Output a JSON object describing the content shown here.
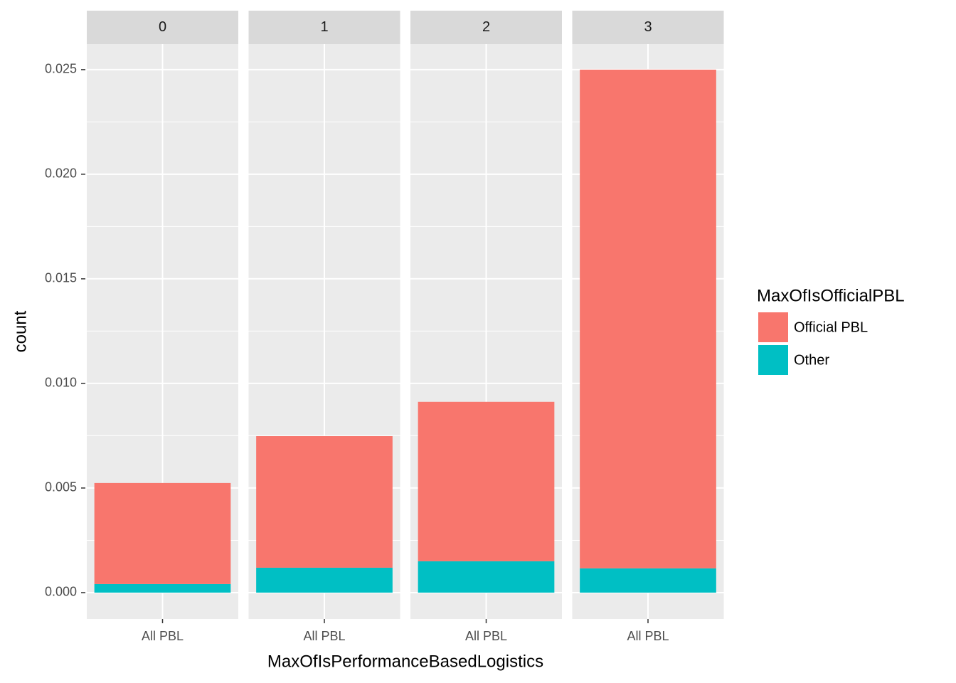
{
  "chart_data": {
    "type": "bar",
    "stacked": true,
    "facets": [
      "0",
      "1",
      "2",
      "3"
    ],
    "categories": [
      "All PBL",
      "All PBL",
      "All PBL",
      "All PBL"
    ],
    "series": [
      {
        "name": "Official PBL",
        "color": "#f8766d",
        "values": [
          0.00483,
          0.00629,
          0.00762,
          0.02384
        ]
      },
      {
        "name": "Other",
        "color": "#00bfc4",
        "values": [
          0.00041,
          0.00119,
          0.0015,
          0.00116
        ]
      }
    ],
    "xlabel": "MaxOfIsPerformanceBasedLogistics",
    "ylabel": "count",
    "legend_title": "MaxOfIsOfficialPBL",
    "ylim": [
      -0.00126,
      0.02622
    ],
    "yticks": [
      {
        "value": 0,
        "label": "0.000"
      },
      {
        "value": 0.005,
        "label": "0.005"
      },
      {
        "value": 0.01,
        "label": "0.010"
      },
      {
        "value": 0.015,
        "label": "0.015"
      },
      {
        "value": 0.02,
        "label": "0.020"
      },
      {
        "value": 0.025,
        "label": "0.025"
      }
    ],
    "grid": true,
    "legend": "right"
  }
}
